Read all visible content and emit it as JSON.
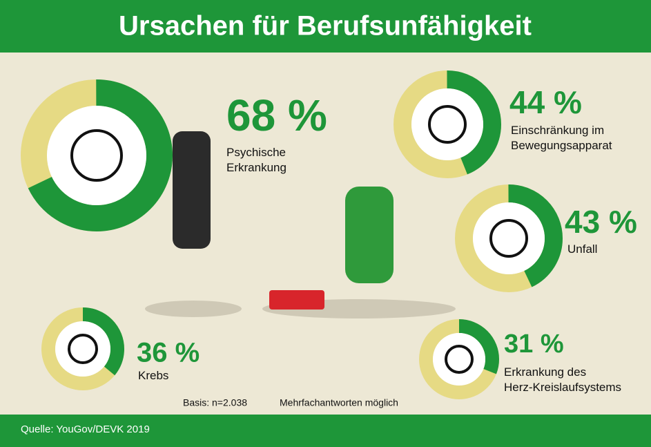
{
  "chart_data": {
    "type": "donut",
    "title": "Ursachen für Berufsunfähigkeit",
    "categories": [
      "Psychische\nErkrankung",
      "Einschränkung im\nBewegungsapparat",
      "Unfall",
      "Krebs",
      "Erkrankung des\nHerz-Kreislaufsystems"
    ],
    "values": [
      68,
      44,
      43,
      36,
      31
    ],
    "value_labels": [
      "68 %",
      "44 %",
      "43 %",
      "36 %",
      "31 %"
    ],
    "color": "#1e9639",
    "rest_color": "#e6da84",
    "notes": [
      "Basis: n=2.038",
      "Mehrfachantworten möglich"
    ],
    "source": "Quelle: YouGov/DEVK 2019"
  }
}
